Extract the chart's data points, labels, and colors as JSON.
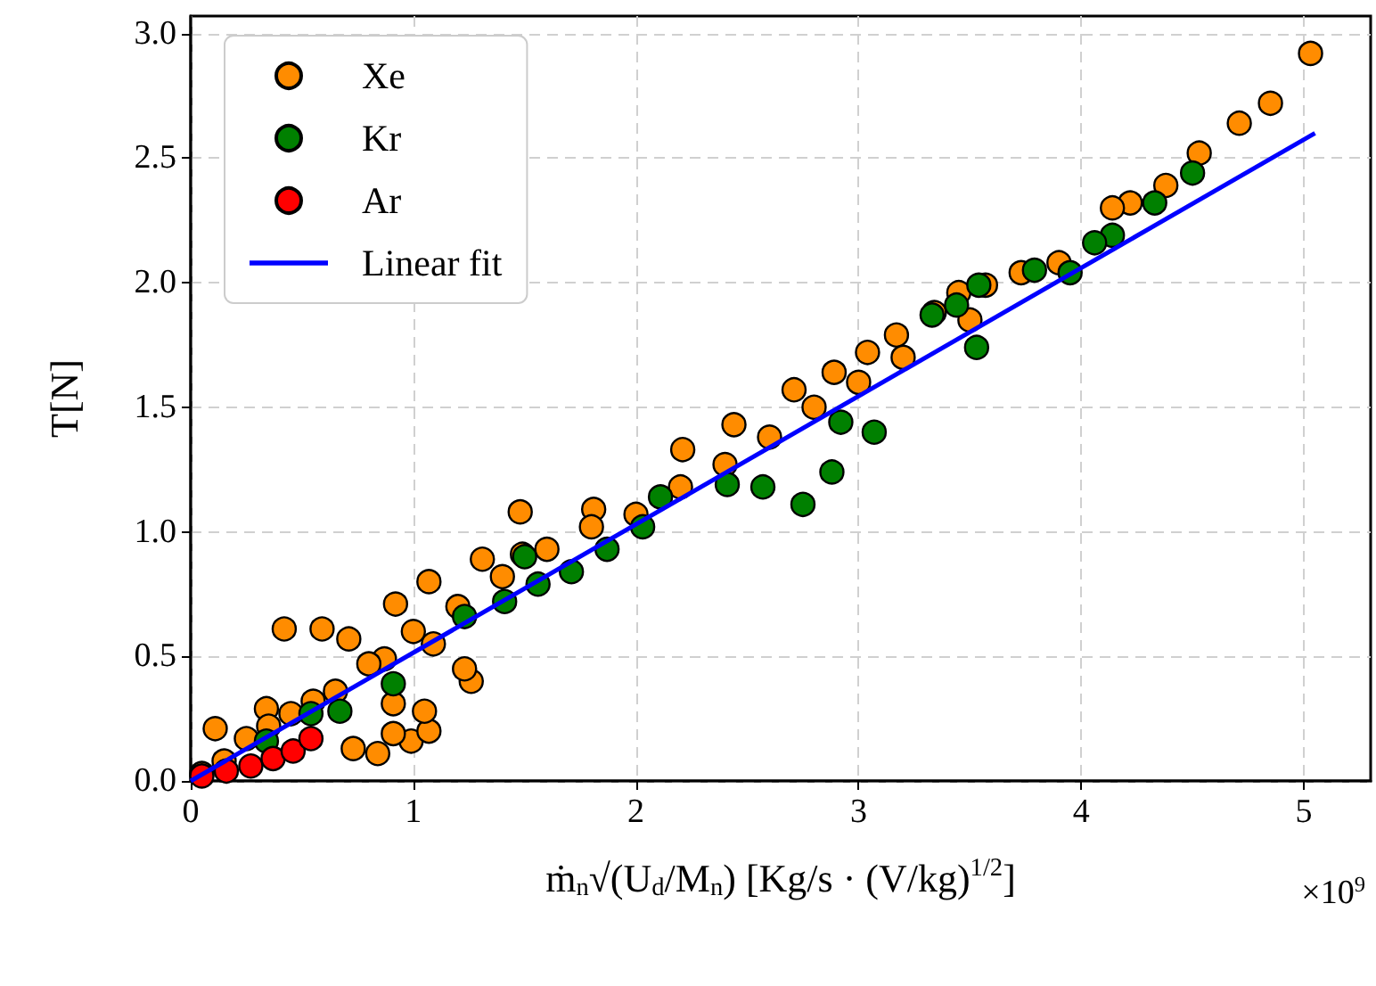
{
  "chart_data": {
    "type": "scatter",
    "xlabel": "ṁ$_{n}$√(U$_{d}$/M$_{n}$) [Kg/s · (V/kg)$^{1/2}$]",
    "ylabel": "T[N]",
    "annotations": [
      "×10$^{9}$"
    ],
    "xlim": [
      0,
      5.3
    ],
    "xticks": [
      0,
      1,
      2,
      3,
      4,
      5
    ],
    "ylim": [
      0,
      3.07
    ],
    "yticks": [
      {
        "value": 0,
        "label": "0.0"
      },
      {
        "value": 0.5,
        "label": "0.5"
      },
      {
        "value": 1,
        "label": "1.0"
      },
      {
        "value": 1.5,
        "label": "1.5"
      },
      {
        "value": 2,
        "label": "2.0"
      },
      {
        "value": 2.5,
        "label": "2.5"
      },
      {
        "value": 3,
        "label": "3.0"
      }
    ],
    "grid": true,
    "legend": "top left",
    "marker": "circle",
    "series": [
      {
        "name": "Xe",
        "color": "#ff8c00",
        "x": [
          0.11,
          5.03,
          4.85,
          4.71,
          4.53,
          4.38,
          4.22,
          4.14,
          3.73,
          3.45,
          3.57,
          3.17,
          3.04,
          2.71,
          2.44,
          2.21,
          1.81,
          1.48,
          1.49,
          1.31,
          1.07,
          0.92,
          0.73,
          0.84,
          0.99,
          1.07,
          0.91,
          1.05,
          0.91,
          1.26,
          1.23,
          1.09,
          0.87,
          0.71,
          0.59,
          0.42,
          0.34,
          2.89,
          3.34,
          0.05,
          0.15,
          0.25,
          0.35,
          0.45,
          0.55,
          0.65,
          0.8,
          1.0,
          1.2,
          1.4,
          1.6,
          1.8,
          2.0,
          2.2,
          2.4,
          2.6,
          2.8,
          3.0,
          3.2,
          3.5,
          3.9
        ],
        "values": [
          0.21,
          2.92,
          2.72,
          2.64,
          2.52,
          2.39,
          2.32,
          2.3,
          2.04,
          1.96,
          1.99,
          1.79,
          1.72,
          1.57,
          1.43,
          1.33,
          1.09,
          1.08,
          0.91,
          0.89,
          0.8,
          0.71,
          0.13,
          0.11,
          0.16,
          0.2,
          0.19,
          0.28,
          0.31,
          0.4,
          0.45,
          0.55,
          0.49,
          0.57,
          0.61,
          0.61,
          0.29,
          1.64,
          1.88,
          0.03,
          0.08,
          0.17,
          0.22,
          0.27,
          0.32,
          0.36,
          0.47,
          0.6,
          0.7,
          0.82,
          0.93,
          1.02,
          1.07,
          1.18,
          1.27,
          1.38,
          1.5,
          1.6,
          1.7,
          1.85,
          2.08
        ]
      },
      {
        "name": "Kr",
        "color": "#008000",
        "x": [
          4.5,
          4.33,
          4.14,
          4.06,
          3.95,
          3.79,
          3.54,
          3.44,
          3.33,
          3.53,
          3.07,
          2.92,
          2.88,
          2.75,
          2.57,
          2.41,
          2.11,
          2.03,
          1.87,
          1.71,
          1.56,
          1.41,
          1.23,
          0.91,
          0.67,
          0.54,
          0.34,
          1.5
        ],
        "values": [
          2.44,
          2.32,
          2.19,
          2.16,
          2.04,
          2.05,
          1.99,
          1.91,
          1.87,
          1.74,
          1.4,
          1.44,
          1.24,
          1.11,
          1.18,
          1.19,
          1.14,
          1.02,
          0.93,
          0.84,
          0.79,
          0.72,
          0.66,
          0.39,
          0.28,
          0.27,
          0.16,
          0.9
        ]
      },
      {
        "name": "Ar",
        "color": "#ff0000",
        "x": [
          0.05,
          0.16,
          0.27,
          0.37,
          0.46,
          0.54
        ],
        "values": [
          0.02,
          0.04,
          0.06,
          0.09,
          0.12,
          0.17
        ]
      },
      {
        "name": "Linear fit",
        "type": "line",
        "color": "#0000ff",
        "marker": "none",
        "x": [
          0,
          5.05
        ],
        "values": [
          0,
          2.6
        ]
      }
    ]
  }
}
